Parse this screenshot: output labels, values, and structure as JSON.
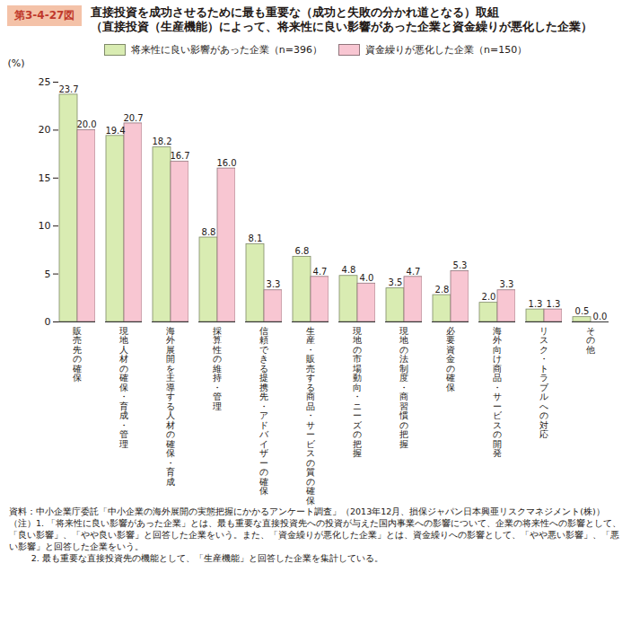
{
  "chart_data": {
    "type": "bar",
    "figure_label": "第3-4-27図",
    "title": "直接投資を成功させるために最も重要な（成功と失敗の分かれ道となる）取組",
    "subtitle": "（直接投資（生産機能）によって、将来性に良い影響があった企業と資金繰りが悪化した企業）",
    "y_label": "(%)",
    "categories": [
      "販売先の確保",
      "現地人材の確保・育成・管理",
      "海外展開を主導する人材の確保・育成",
      "採算性の維持・管理",
      "信頼できる提携先・アドバイザーの確保",
      "生産・販売する商品・サービスの質の確保",
      "現地の市場動向・ニーズの把握",
      "現地の法制度・商習慣の把握",
      "必要資金の確保",
      "海外向け商品・サービスの開発",
      "リスク・トラブルへの対応",
      "その他"
    ],
    "series": [
      {
        "name": "将来性に良い影響があった企業（n=396）",
        "color": "#d9ecb2",
        "values": [
          23.7,
          19.4,
          18.2,
          8.8,
          8.1,
          6.8,
          4.8,
          3.5,
          2.8,
          2.0,
          1.3,
          0.5
        ],
        "value_labels": [
          "23.7",
          "19.4",
          "18.2",
          "8.8",
          "8.1",
          "6.8",
          "4.8",
          "3.5",
          "2.8",
          "2.0",
          "1.3",
          "0.5"
        ]
      },
      {
        "name": "資金繰りが悪化した企業（n=150）",
        "color": "#f8c6d2",
        "values": [
          20.0,
          20.7,
          16.7,
          16.0,
          3.3,
          4.7,
          4.0,
          4.7,
          5.3,
          3.3,
          1.3,
          0.0
        ],
        "value_labels": [
          "20.0",
          "20.7",
          "16.7",
          "16.0",
          "3.3",
          "4.7",
          "4.0",
          "4.7",
          "5.3",
          "3.3",
          "1.3",
          "0.0"
        ]
      }
    ],
    "ylim": [
      0,
      25
    ],
    "yticks": [
      0,
      5,
      10,
      15,
      20,
      25
    ],
    "grid": false,
    "legend": "top",
    "data_labels": true,
    "source": "資料：中小企業庁委託「中小企業の海外展開の実態把握にかかるアンケート調査」（2013年12月、損保ジャパン日本興亜リスクマネジメント(株)）",
    "notes": [
      "（注）1. 「将来性に良い影響があった企業」とは、最も重要な直接投資先への投資が与えた国内事業への影響について、企業の将来性への影響として、「良い影響」、「やや良い影響」と回答した企業をいう。また、「資金繰りが悪化した企業」とは、資金繰りへの影響として、「やや悪い影響」、「悪い影響」と回答した企業をいう。",
      "2. 最も重要な直接投資先の機能として、「生産機能」と回答した企業を集計している。"
    ]
  }
}
